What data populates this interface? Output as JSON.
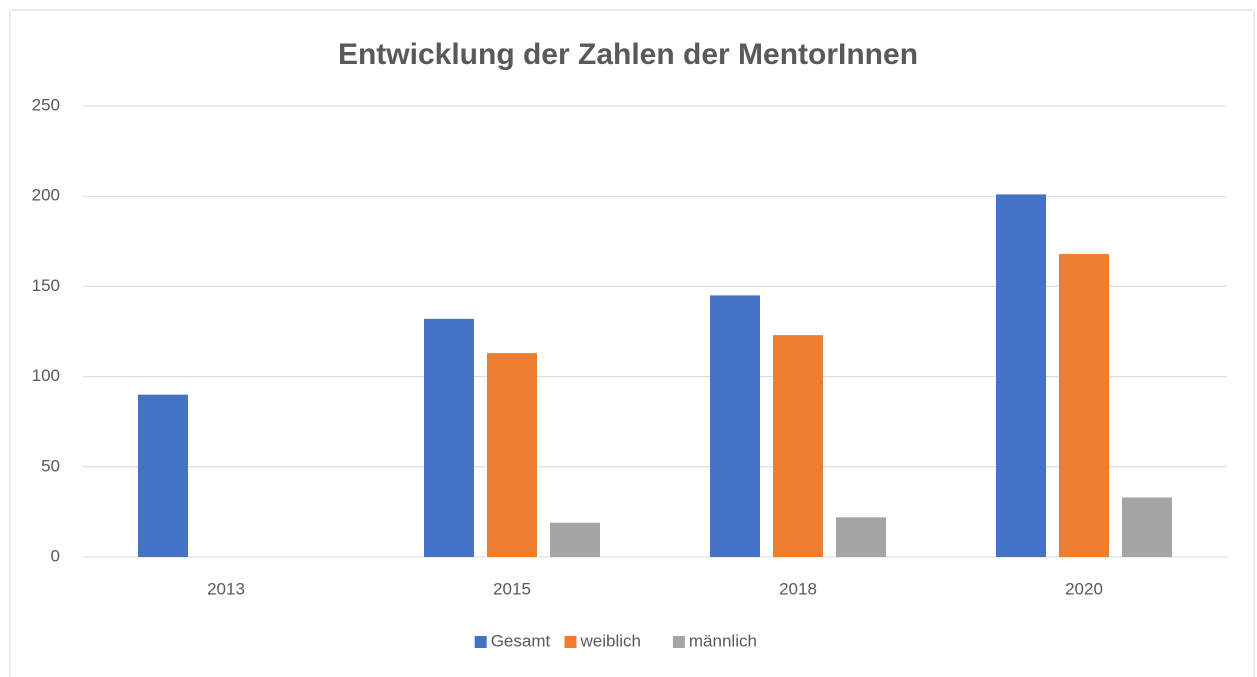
{
  "chart_data": {
    "type": "bar",
    "title": "Entwicklung der Zahlen der MentorInnen",
    "categories": [
      "2013",
      "2015",
      "2018",
      "2020"
    ],
    "series": [
      {
        "name": "Gesamt",
        "color": "#4472c4",
        "values": [
          90,
          132,
          145,
          201
        ]
      },
      {
        "name": "weiblich",
        "color": "#ed7d31",
        "values": [
          null,
          113,
          123,
          168
        ]
      },
      {
        "name": "männlich",
        "color": "#a5a5a5",
        "values": [
          null,
          19,
          22,
          33
        ]
      }
    ],
    "ylim": [
      0,
      250
    ],
    "yticks": [
      0,
      50,
      100,
      150,
      200,
      250
    ],
    "grid": true,
    "legend": "bottom"
  }
}
